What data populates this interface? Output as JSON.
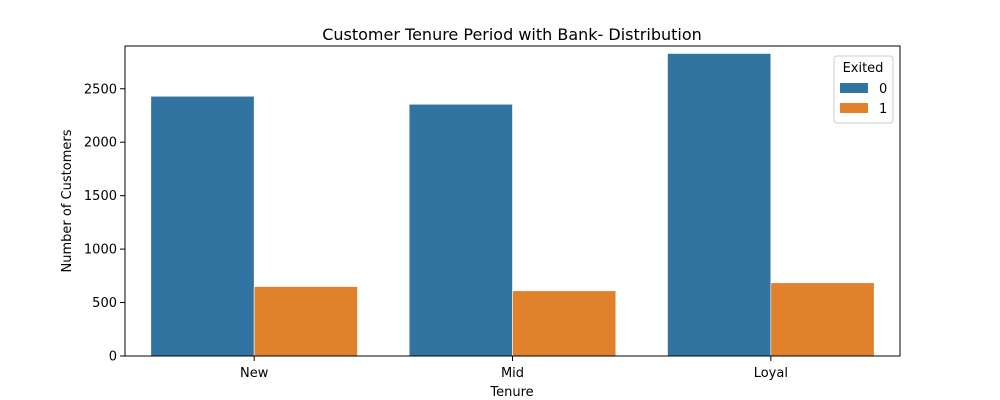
{
  "chart_data": {
    "type": "bar",
    "title": "Customer Tenure Period with Bank- Distribution",
    "xlabel": "Tenure",
    "ylabel": "Number of Customers",
    "categories": [
      "New",
      "Mid",
      "Loyal"
    ],
    "series": [
      {
        "name": "0",
        "values": [
          2430,
          2355,
          2830
        ],
        "color": "#3274a1"
      },
      {
        "name": "1",
        "values": [
          650,
          610,
          685
        ],
        "color": "#e1812c"
      }
    ],
    "ylim": [
      0,
      2900
    ],
    "yticks": [
      0,
      500,
      1000,
      1500,
      2000,
      2500
    ],
    "grid": false,
    "legend": {
      "title": "Exited",
      "placement": "top-right"
    }
  }
}
